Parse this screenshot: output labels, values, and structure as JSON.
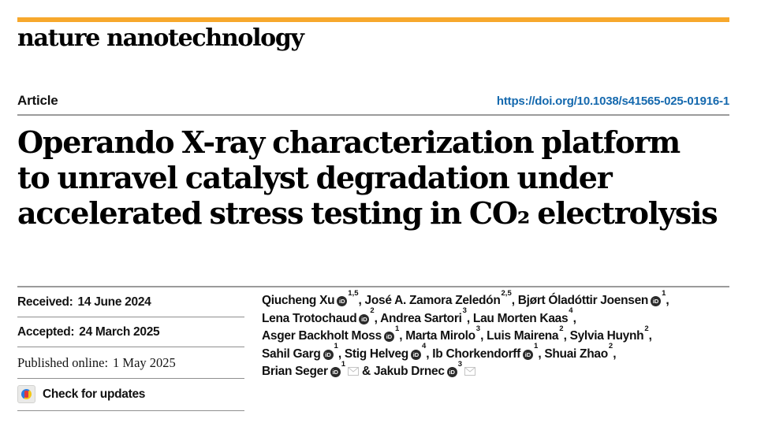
{
  "masthead": {
    "journal_name": "nature nanotechnology"
  },
  "header": {
    "kicker": "Article",
    "doi": "https://doi.org/10.1038/s41565-025-01916-1",
    "title_lines": [
      "Operando X-ray characterization platform",
      "to unravel catalyst degradation under",
      "accelerated stress testing in CO₂ electrolysis"
    ]
  },
  "history": {
    "received": {
      "label": "Received:",
      "value": "14 June 2024"
    },
    "accepted": {
      "label": "Accepted:",
      "value": "24 March 2025"
    },
    "published": {
      "label": "Published online:",
      "value": "1 May 2025"
    },
    "check_updates_label": "Check for updates"
  },
  "authors": {
    "lines": [
      [
        {
          "name": "Qiucheng Xu",
          "orcid": true,
          "sup": "1,5",
          "post": ", "
        },
        {
          "name": "José A. Zamora Zeledón",
          "orcid": false,
          "sup": "2,5",
          "post": ", "
        },
        {
          "name": "Bjørt Óladóttir Joensen",
          "orcid": true,
          "sup": "1",
          "post": ","
        }
      ],
      [
        {
          "name": "Lena Trotochaud",
          "orcid": true,
          "sup": "2",
          "post": ", "
        },
        {
          "name": "Andrea Sartori",
          "orcid": false,
          "sup": "3",
          "post": ", "
        },
        {
          "name": "Lau Morten Kaas",
          "orcid": false,
          "sup": "4",
          "post": ","
        }
      ],
      [
        {
          "name": "Asger Backholt Moss",
          "orcid": true,
          "sup": "1",
          "post": ", "
        },
        {
          "name": "Marta Mirolo",
          "orcid": false,
          "sup": "3",
          "post": ", "
        },
        {
          "name": "Luis Mairena",
          "orcid": false,
          "sup": "2",
          "post": ", "
        },
        {
          "name": "Sylvia Huynh",
          "orcid": false,
          "sup": "2",
          "post": ","
        }
      ],
      [
        {
          "name": "Sahil Garg",
          "orcid": true,
          "sup": "1",
          "post": ", "
        },
        {
          "name": "Stig Helveg",
          "orcid": true,
          "sup": "4",
          "post": ", "
        },
        {
          "name": "Ib Chorkendorff",
          "orcid": true,
          "sup": "1",
          "post": ", "
        },
        {
          "name": "Shuai Zhao",
          "orcid": false,
          "sup": "2",
          "post": ","
        }
      ],
      [
        {
          "name": "Brian Seger",
          "orcid": true,
          "sup": "1",
          "envelope": true,
          "post": " & "
        },
        {
          "name": "Jakub Drnec",
          "orcid": true,
          "sup": "3",
          "envelope": true,
          "post": ""
        }
      ]
    ],
    "orcid_icon_glyph": "iD"
  },
  "icons": {
    "orcid": "orcid-id-icon",
    "email": "envelope-icon",
    "check_updates": "crossmark-icon"
  },
  "colors": {
    "accent_orange": "#F7A82C",
    "link_blue": "#1569AE",
    "rule_gray": "#9B9B9B",
    "orcid_dark": "#2B2B2B",
    "envelope_gray": "#C4C4C4",
    "crossmark_red": "#E0393E",
    "crossmark_blue": "#2A7DE1",
    "crossmark_yellow": "#F3C713"
  }
}
